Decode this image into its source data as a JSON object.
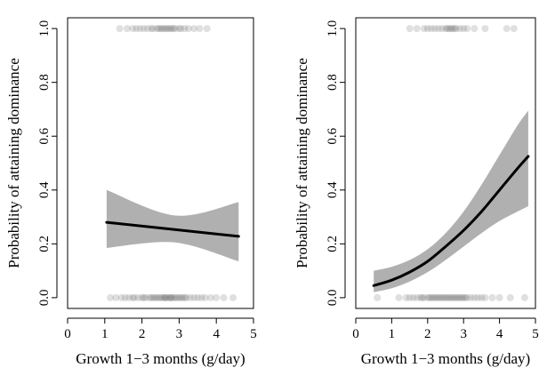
{
  "chart_data": [
    {
      "type": "scatter",
      "xlabel": "Growth 1−3 months (g/day)",
      "ylabel": "Probability of attaining dominance",
      "xlim": [
        0,
        5
      ],
      "ylim": [
        0,
        1
      ],
      "x_ticks": [
        "0",
        "1",
        "2",
        "3",
        "4",
        "5"
      ],
      "y_ticks": [
        "0.0",
        "0.2",
        "0.4",
        "0.6",
        "0.8",
        "1.0"
      ],
      "grid": false,
      "fit": {
        "x": [
          1.05,
          4.6
        ],
        "y": [
          0.28,
          0.228
        ],
        "lower": [
          0.185,
          0.135
        ],
        "upper": [
          0.4,
          0.355
        ],
        "band_mid": {
          "x": 2.9,
          "lower": 0.205,
          "upper": 0.305
        }
      },
      "points_top_y": 1.0,
      "points_top_x": [
        1.4,
        1.6,
        1.75,
        1.85,
        1.95,
        2.05,
        2.15,
        2.25,
        2.3,
        2.4,
        2.45,
        2.5,
        2.55,
        2.6,
        2.65,
        2.7,
        2.75,
        2.8,
        2.85,
        2.9,
        3.0,
        3.05,
        3.15,
        3.25,
        3.4,
        3.55,
        3.75
      ],
      "points_bottom_y": 0.0,
      "points_bottom_x": [
        1.15,
        1.3,
        1.45,
        1.55,
        1.65,
        1.75,
        1.8,
        1.9,
        2.0,
        2.05,
        2.1,
        2.2,
        2.25,
        2.3,
        2.35,
        2.4,
        2.45,
        2.5,
        2.55,
        2.6,
        2.62,
        2.65,
        2.7,
        2.75,
        2.78,
        2.8,
        2.85,
        2.9,
        2.95,
        3.0,
        3.05,
        3.1,
        3.15,
        3.2,
        3.3,
        3.4,
        3.5,
        3.6,
        3.7,
        3.85,
        4.0,
        4.2,
        4.45
      ]
    },
    {
      "type": "scatter",
      "xlabel": "Growth 1−3 months (g/day)",
      "ylabel": "Probability of attaining dominance",
      "xlim": [
        0,
        5
      ],
      "ylim": [
        0,
        1
      ],
      "x_ticks": [
        "0",
        "1",
        "2",
        "3",
        "4",
        "5"
      ],
      "y_ticks": [
        "0.0",
        "0.2",
        "0.4",
        "0.6",
        "0.8",
        "1.0"
      ],
      "grid": false,
      "fit": {
        "x": [
          0.5,
          1.0,
          1.5,
          2.0,
          2.5,
          3.0,
          3.5,
          4.0,
          4.5,
          4.8
        ],
        "y": [
          0.045,
          0.065,
          0.095,
          0.135,
          0.19,
          0.25,
          0.32,
          0.4,
          0.48,
          0.525
        ],
        "lower": [
          0.02,
          0.035,
          0.06,
          0.095,
          0.14,
          0.19,
          0.24,
          0.285,
          0.32,
          0.34
        ],
        "upper": [
          0.1,
          0.115,
          0.14,
          0.18,
          0.24,
          0.32,
          0.42,
          0.53,
          0.64,
          0.695
        ]
      },
      "points_top_y": 1.0,
      "points_top_x": [
        1.5,
        1.7,
        1.9,
        2.0,
        2.1,
        2.2,
        2.3,
        2.4,
        2.5,
        2.55,
        2.6,
        2.65,
        2.7,
        2.75,
        2.8,
        2.9,
        3.0,
        3.1,
        3.3,
        3.6,
        4.2,
        4.4
      ],
      "points_bottom_y": 0.0,
      "points_bottom_x": [
        0.6,
        1.2,
        1.4,
        1.5,
        1.6,
        1.7,
        1.8,
        1.85,
        1.9,
        2.0,
        2.05,
        2.1,
        2.15,
        2.2,
        2.25,
        2.3,
        2.35,
        2.4,
        2.45,
        2.5,
        2.55,
        2.6,
        2.65,
        2.7,
        2.75,
        2.8,
        2.85,
        2.9,
        2.95,
        3.0,
        3.05,
        3.1,
        3.2,
        3.3,
        3.4,
        3.5,
        3.6,
        3.8,
        4.0,
        4.3,
        4.7
      ]
    }
  ]
}
